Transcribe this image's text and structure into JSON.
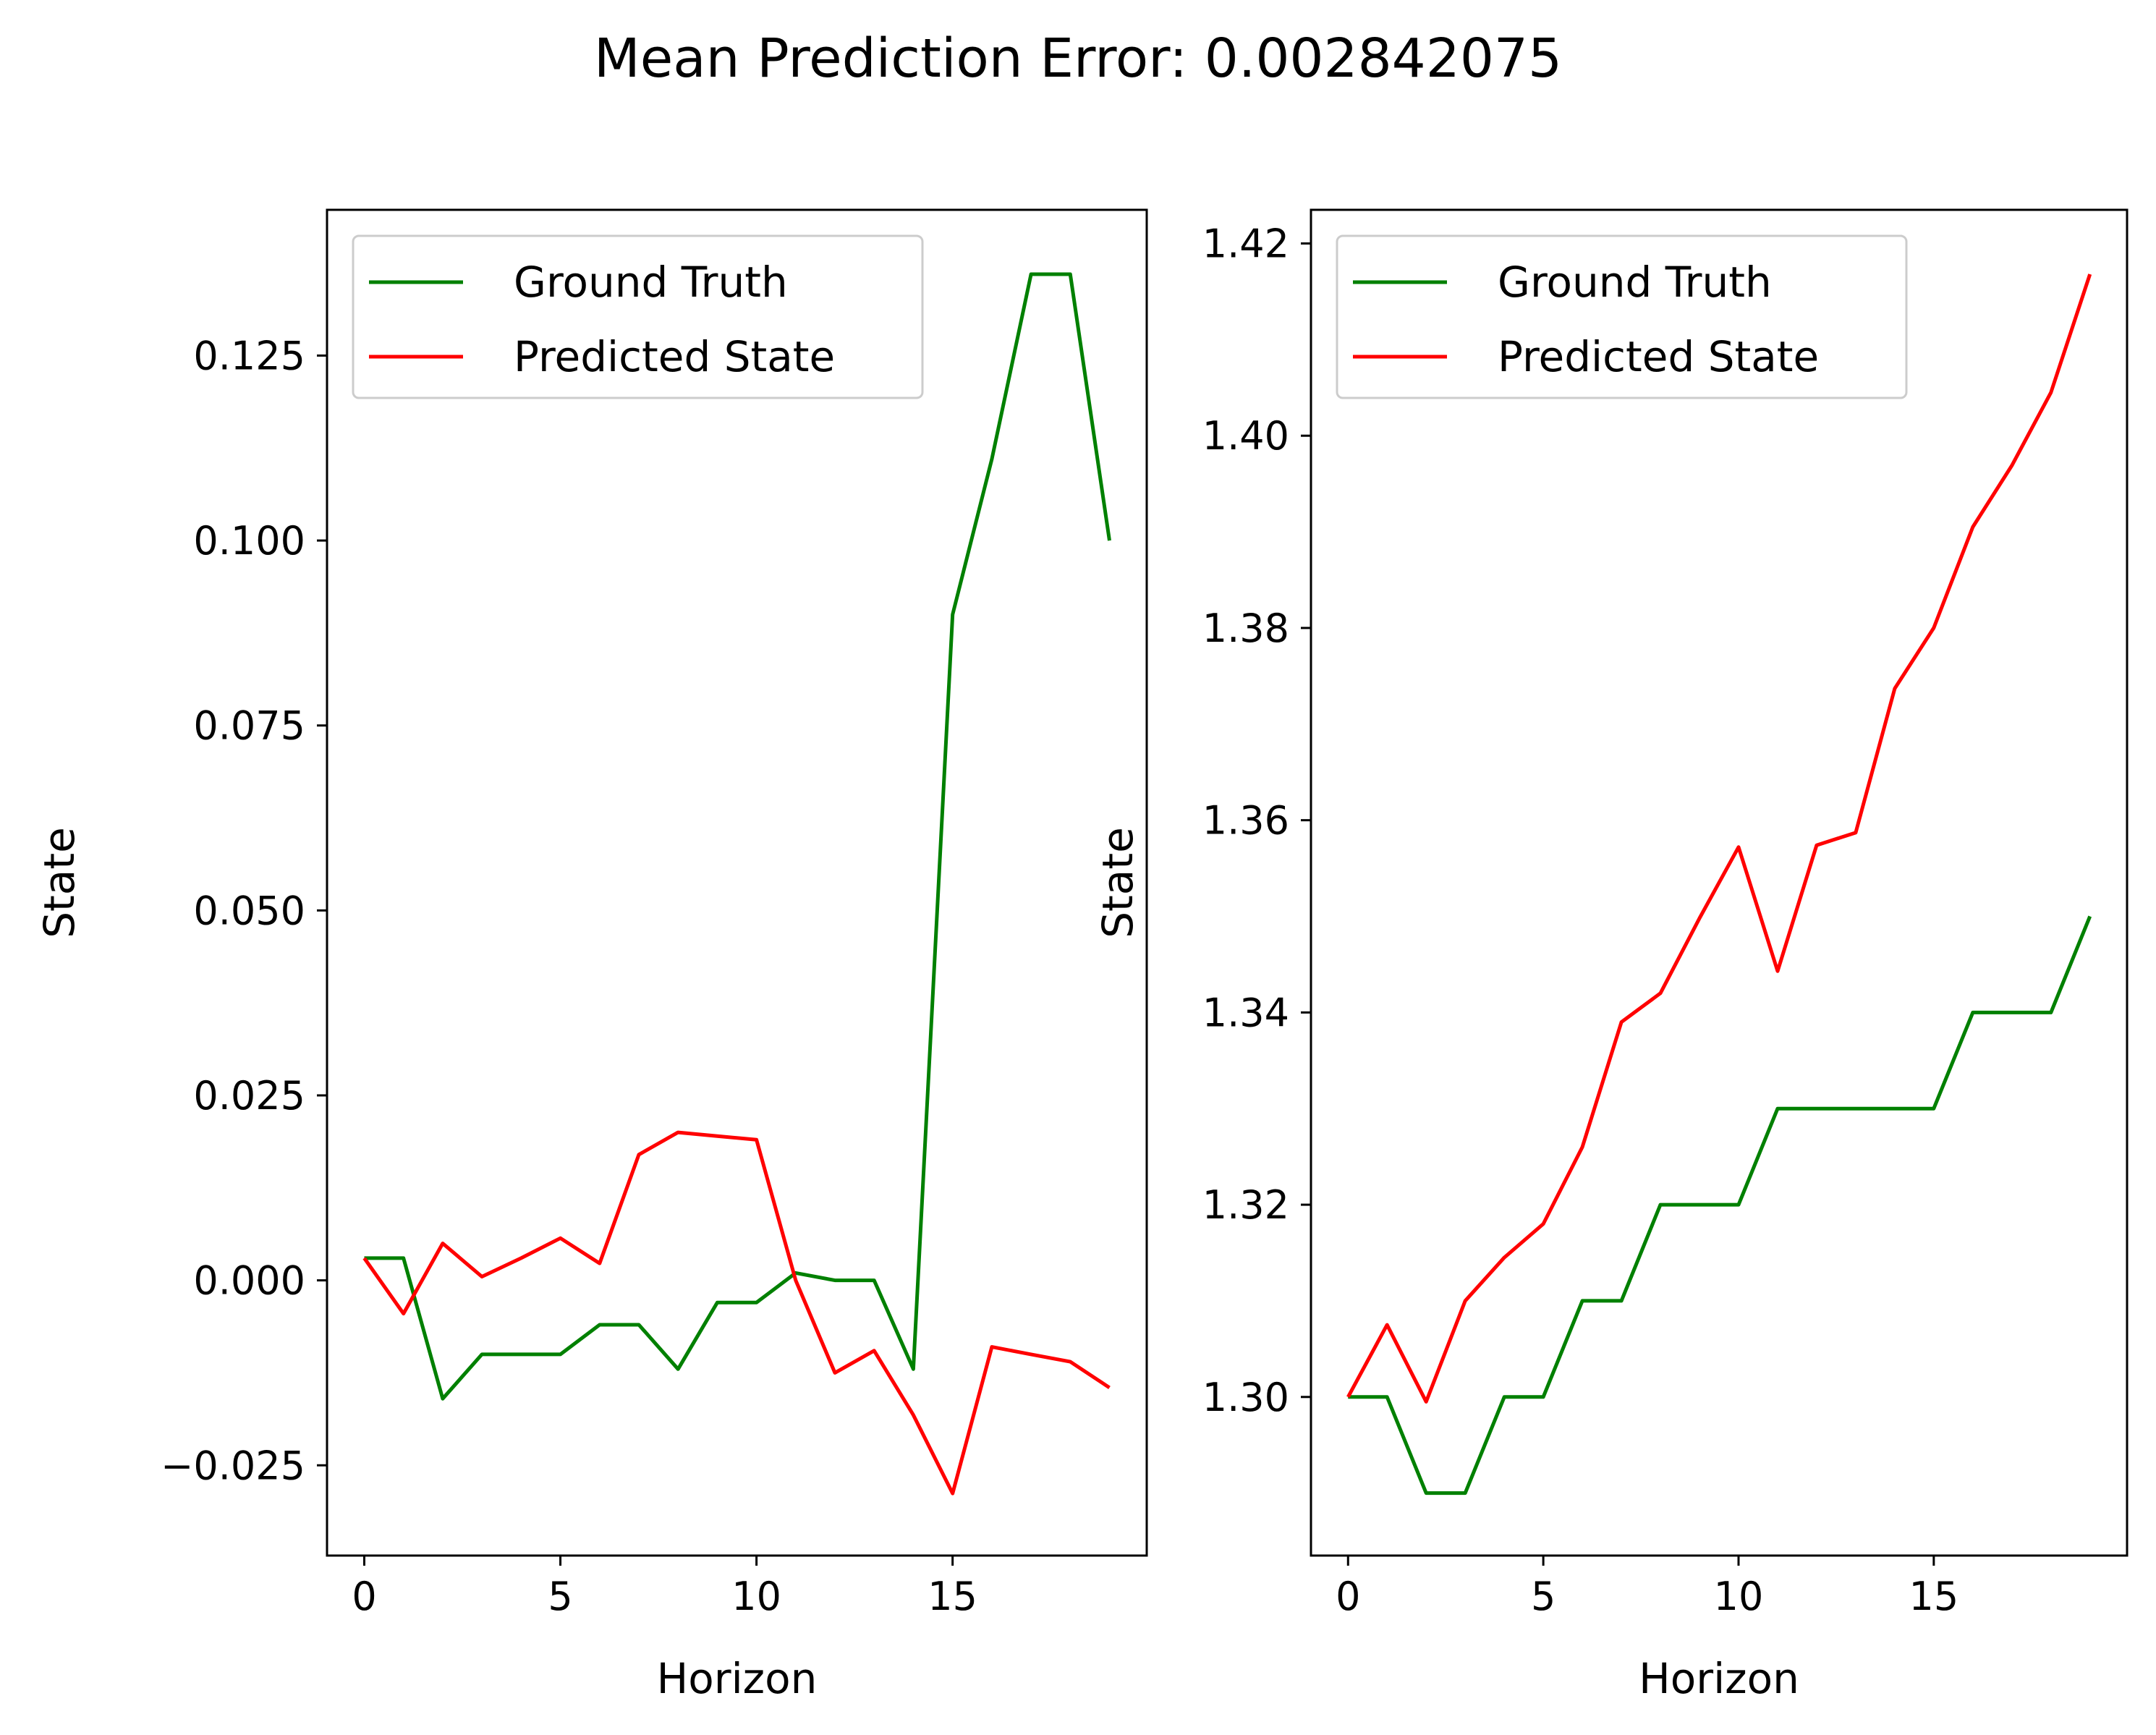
{
  "suptitle": "Mean Prediction Error: 0.002842075",
  "colors": {
    "ground_truth": "#008000",
    "predicted": "#ff0000"
  },
  "chart_data": [
    {
      "type": "line",
      "title": "",
      "xlabel": "Horizon",
      "ylabel": "State",
      "xlim": [
        -0.95,
        19.95
      ],
      "ylim": [
        -0.0372,
        0.1447
      ],
      "xticks": [
        0,
        5,
        10,
        15
      ],
      "xtick_labels": [
        "0",
        "5",
        "10",
        "15"
      ],
      "yticks": [
        -0.025,
        0,
        0.025,
        0.05,
        0.075,
        0.1,
        0.125
      ],
      "ytick_labels": [
        "−0.025",
        "0.000",
        "0.025",
        "0.050",
        "0.075",
        "0.100",
        "0.125"
      ],
      "grid": false,
      "legend": "upper left",
      "x": [
        0,
        1,
        2,
        3,
        4,
        5,
        6,
        7,
        8,
        9,
        10,
        11,
        12,
        13,
        14,
        15,
        16,
        17,
        18,
        19
      ],
      "series": [
        {
          "name": "Ground Truth",
          "color": "#008000",
          "values": [
            0.003,
            0.003,
            -0.016,
            -0.01,
            -0.01,
            -0.01,
            -0.006,
            -0.006,
            -0.012,
            -0.003,
            -0.003,
            0.001,
            0.0,
            0.0,
            -0.012,
            0.09,
            0.111,
            0.136,
            0.136,
            0.1
          ]
        },
        {
          "name": "Predicted State",
          "color": "#ff0000",
          "values": [
            0.003,
            -0.0045,
            0.005,
            0.0005,
            0.003,
            0.0057,
            0.0023,
            0.017,
            0.02,
            0.0195,
            0.019,
            0.0,
            -0.0125,
            -0.0095,
            -0.0182,
            -0.0288,
            -0.009,
            -0.01,
            -0.011,
            -0.0145
          ]
        }
      ]
    },
    {
      "type": "line",
      "title": "",
      "xlabel": "Horizon",
      "ylabel": "State",
      "xlim": [
        -0.95,
        19.95
      ],
      "ylim": [
        1.2835,
        1.4235
      ],
      "xticks": [
        0,
        5,
        10,
        15
      ],
      "xtick_labels": [
        "0",
        "5",
        "10",
        "15"
      ],
      "yticks": [
        1.3,
        1.32,
        1.34,
        1.36,
        1.38,
        1.4,
        1.42
      ],
      "ytick_labels": [
        "1.30",
        "1.32",
        "1.34",
        "1.36",
        "1.38",
        "1.40",
        "1.42"
      ],
      "grid": false,
      "legend": "upper left",
      "x": [
        0,
        1,
        2,
        3,
        4,
        5,
        6,
        7,
        8,
        9,
        10,
        11,
        12,
        13,
        14,
        15,
        16,
        17,
        18,
        19
      ],
      "series": [
        {
          "name": "Ground Truth",
          "color": "#008000",
          "values": [
            1.3,
            1.3,
            1.29,
            1.29,
            1.3,
            1.3,
            1.31,
            1.31,
            1.32,
            1.32,
            1.32,
            1.33,
            1.33,
            1.33,
            1.33,
            1.33,
            1.34,
            1.34,
            1.34,
            1.35
          ]
        },
        {
          "name": "Predicted State",
          "color": "#ff0000",
          "values": [
            1.3,
            1.3075,
            1.2995,
            1.31,
            1.3145,
            1.318,
            1.326,
            1.339,
            1.342,
            1.3498,
            1.3572,
            1.3443,
            1.3574,
            1.3587,
            1.3737,
            1.38,
            1.3905,
            1.3969,
            1.4045,
            1.4168
          ]
        }
      ]
    }
  ]
}
